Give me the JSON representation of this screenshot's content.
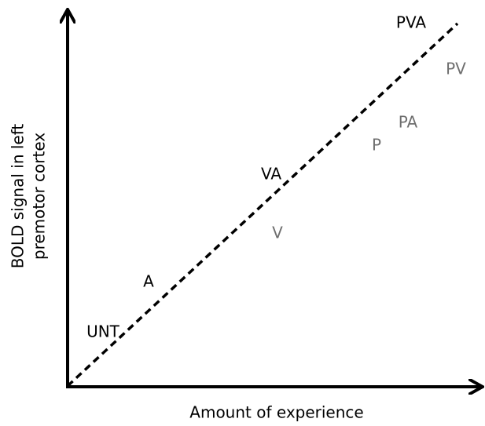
{
  "x_axis_label": "Amount of experience",
  "y_axis_label": [
    "BOLD signal in left",
    "premotor cortex"
  ],
  "nodes": [
    {
      "label": "PVA",
      "color": "#000000"
    },
    {
      "label": "PV",
      "color": "#6e6e6e"
    },
    {
      "label": "PA",
      "color": "#6e6e6e"
    },
    {
      "label": "P",
      "color": "#6e6e6e"
    },
    {
      "label": "VA",
      "color": "#000000"
    },
    {
      "label": "V",
      "color": "#6e6e6e"
    },
    {
      "label": "A",
      "color": "#000000"
    },
    {
      "label": "UNT",
      "color": "#000000"
    }
  ]
}
